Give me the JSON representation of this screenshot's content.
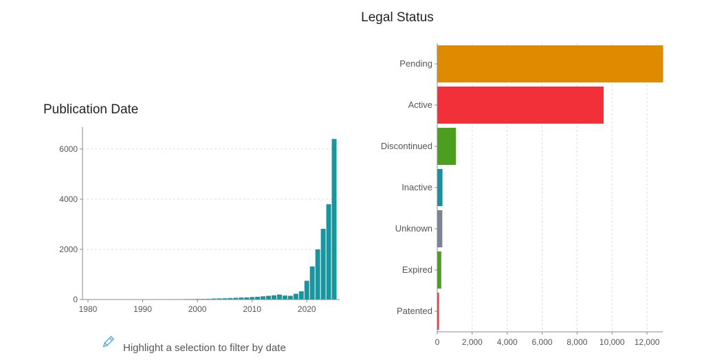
{
  "chart_data": [
    {
      "type": "bar",
      "title": "Publication Date",
      "xlabel": "",
      "ylabel": "",
      "x_ticks": [
        1980,
        1990,
        2000,
        2010,
        2020
      ],
      "y_ticks": [
        0,
        2000,
        4000,
        6000
      ],
      "xlim": [
        1979,
        2026
      ],
      "ylim": [
        0,
        6600
      ],
      "grid": "horizontal dashed",
      "bar_color": "#1597a2",
      "years": [
        1981,
        1982,
        1983,
        1984,
        1985,
        1986,
        1987,
        1988,
        1989,
        1990,
        1991,
        1992,
        1993,
        1994,
        1995,
        1996,
        1997,
        1998,
        1999,
        2000,
        2001,
        2002,
        2003,
        2004,
        2005,
        2006,
        2007,
        2008,
        2009,
        2010,
        2011,
        2012,
        2013,
        2014,
        2015,
        2016,
        2017,
        2018,
        2019,
        2020,
        2021,
        2022,
        2023,
        2024,
        2025
      ],
      "values": [
        5,
        5,
        5,
        5,
        5,
        5,
        5,
        5,
        10,
        10,
        10,
        10,
        10,
        10,
        15,
        15,
        15,
        20,
        20,
        25,
        25,
        30,
        40,
        45,
        50,
        60,
        70,
        80,
        85,
        100,
        110,
        130,
        150,
        170,
        200,
        160,
        150,
        230,
        330,
        750,
        1320,
        2000,
        2820,
        3800,
        6400
      ],
      "hint_icon": "pencil-icon",
      "hint_text": "Highlight a selection to filter by date"
    },
    {
      "type": "bar",
      "orientation": "horizontal",
      "title": "Legal Status",
      "xlabel": "",
      "ylabel": "",
      "x_ticks": [
        "0",
        "2,000",
        "4,000",
        "6,000",
        "8,000",
        "10,000",
        "12,000"
      ],
      "xlim": [
        0,
        12900
      ],
      "grid": "vertical dashed",
      "categories": [
        "Pending",
        "Active",
        "Discontinued",
        "Inactive",
        "Unknown",
        "Expired",
        "Patented"
      ],
      "values": [
        12900,
        9500,
        1050,
        280,
        270,
        210,
        60
      ],
      "colors": [
        "#e08a00",
        "#f2303a",
        "#4c9e1f",
        "#17919b",
        "#7a8494",
        "#4c9e1f",
        "#f2303a"
      ]
    }
  ]
}
